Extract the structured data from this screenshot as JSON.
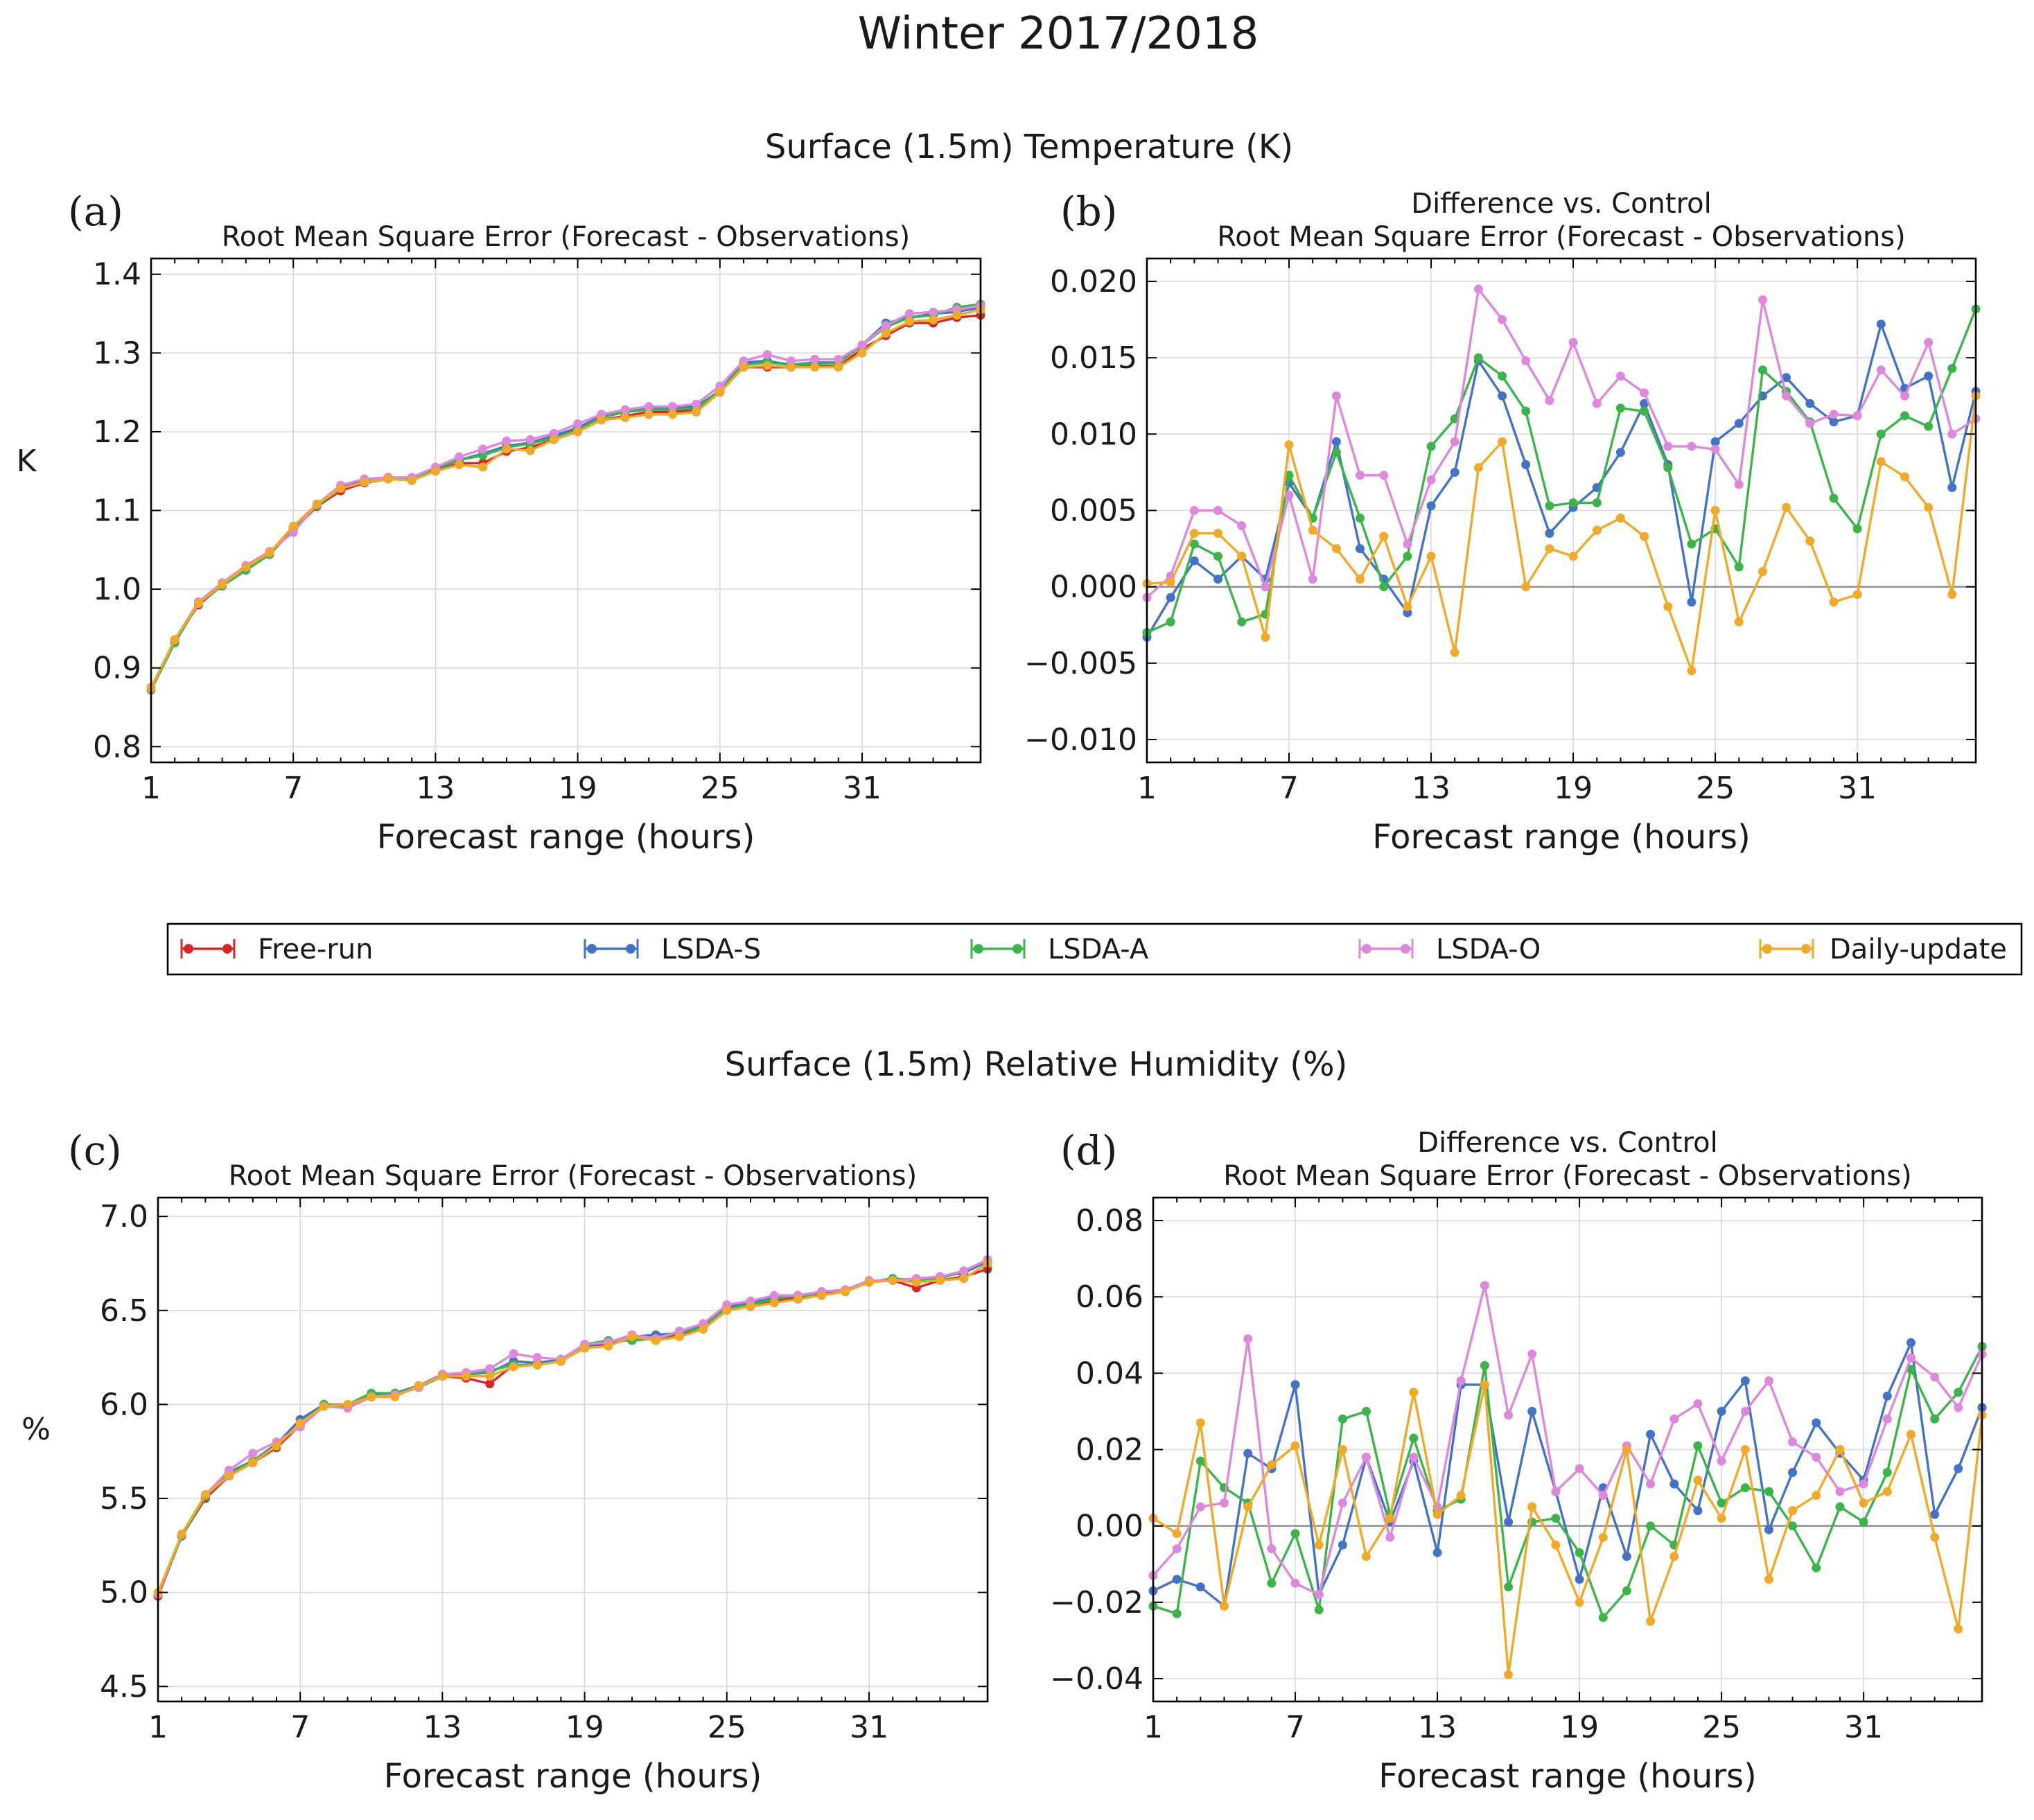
{
  "figure": {
    "title": "Winter 2017/2018",
    "row1_title": "Surface (1.5m) Temperature (K)",
    "row2_title": "Surface (1.5m) Relative Humidity (%)"
  },
  "legend": {
    "items": [
      {
        "name": "Free-run",
        "color": "#d62728"
      },
      {
        "name": "LSDA-S",
        "color": "#4472c4"
      },
      {
        "name": "LSDA-A",
        "color": "#3cb44b"
      },
      {
        "name": "LSDA-O",
        "color": "#dd88dd"
      },
      {
        "name": "Daily-update",
        "color": "#f0a92a"
      }
    ]
  },
  "chart_data": [
    {
      "id": "a",
      "letter": "(a)",
      "type": "line",
      "title": "Root Mean Square Error (Forecast - Observations)",
      "subtitle": "",
      "xlabel": "Forecast range (hours)",
      "ylabel": "K",
      "xlim": [
        1,
        36
      ],
      "ylim": [
        0.78,
        1.42
      ],
      "xticks": [
        1,
        7,
        13,
        19,
        25,
        31
      ],
      "yticks": [
        0.8,
        0.9,
        1.0,
        1.1,
        1.2,
        1.3,
        1.4
      ],
      "ytick_labels": [
        "0.8",
        "0.9",
        "1.0",
        "1.1",
        "1.2",
        "1.3",
        "1.4"
      ],
      "zero_line": false,
      "x": [
        1,
        2,
        3,
        4,
        5,
        6,
        7,
        8,
        9,
        10,
        11,
        12,
        13,
        14,
        15,
        16,
        17,
        18,
        19,
        20,
        21,
        22,
        23,
        24,
        25,
        26,
        27,
        28,
        29,
        30,
        31,
        32,
        33,
        34,
        35,
        36
      ],
      "series": [
        {
          "name": "Free-run",
          "values": [
            0.875,
            0.935,
            0.98,
            1.005,
            1.025,
            1.045,
            1.075,
            1.105,
            1.125,
            1.135,
            1.14,
            1.14,
            1.15,
            1.16,
            1.16,
            1.175,
            1.18,
            1.19,
            1.2,
            1.215,
            1.22,
            1.225,
            1.225,
            1.228,
            1.25,
            1.282,
            1.282,
            1.282,
            1.283,
            1.283,
            1.305,
            1.322,
            1.338,
            1.338,
            1.345,
            1.348
          ]
        },
        {
          "name": "LSDA-S",
          "values": [
            0.872,
            0.932,
            0.982,
            1.004,
            1.026,
            1.046,
            1.078,
            1.108,
            1.13,
            1.137,
            1.142,
            1.138,
            1.152,
            1.164,
            1.172,
            1.182,
            1.186,
            1.195,
            1.205,
            1.22,
            1.225,
            1.23,
            1.23,
            1.232,
            1.252,
            1.288,
            1.29,
            1.285,
            1.288,
            1.288,
            1.31,
            1.338,
            1.345,
            1.35,
            1.352,
            1.358
          ]
        },
        {
          "name": "LSDA-A",
          "values": [
            0.872,
            0.932,
            0.982,
            1.004,
            1.024,
            1.044,
            1.076,
            1.106,
            1.128,
            1.136,
            1.142,
            1.138,
            1.154,
            1.164,
            1.17,
            1.18,
            1.185,
            1.192,
            1.202,
            1.218,
            1.225,
            1.228,
            1.228,
            1.23,
            1.252,
            1.285,
            1.288,
            1.285,
            1.286,
            1.287,
            1.31,
            1.333,
            1.345,
            1.348,
            1.358,
            1.362
          ]
        },
        {
          "name": "LSDA-O",
          "values": [
            0.874,
            0.936,
            0.984,
            1.008,
            1.03,
            1.048,
            1.072,
            1.108,
            1.132,
            1.14,
            1.142,
            1.142,
            1.155,
            1.168,
            1.178,
            1.188,
            1.19,
            1.198,
            1.21,
            1.222,
            1.228,
            1.232,
            1.232,
            1.235,
            1.258,
            1.29,
            1.298,
            1.29,
            1.292,
            1.292,
            1.31,
            1.335,
            1.35,
            1.352,
            1.355,
            1.36
          ]
        },
        {
          "name": "Daily-update",
          "values": [
            0.875,
            0.936,
            0.982,
            1.006,
            1.028,
            1.046,
            1.08,
            1.108,
            1.128,
            1.136,
            1.14,
            1.138,
            1.15,
            1.158,
            1.155,
            1.178,
            1.176,
            1.19,
            1.2,
            1.215,
            1.218,
            1.222,
            1.222,
            1.225,
            1.25,
            1.282,
            1.284,
            1.282,
            1.282,
            1.282,
            1.3,
            1.325,
            1.34,
            1.342,
            1.348,
            1.355
          ]
        }
      ]
    },
    {
      "id": "b",
      "letter": "(b)",
      "type": "line",
      "title": "Difference vs. Control",
      "subtitle": "Root Mean Square Error (Forecast - Observations)",
      "xlabel": "Forecast range (hours)",
      "ylabel": "",
      "xlim": [
        1,
        36
      ],
      "ylim": [
        -0.0115,
        0.0215
      ],
      "xticks": [
        1,
        7,
        13,
        19,
        25,
        31
      ],
      "yticks": [
        -0.01,
        -0.005,
        0.0,
        0.005,
        0.01,
        0.015,
        0.02
      ],
      "ytick_labels": [
        "−0.010",
        "−0.005",
        "0.000",
        "0.005",
        "0.010",
        "0.015",
        "0.020"
      ],
      "zero_line": true,
      "x": [
        1,
        2,
        3,
        4,
        5,
        6,
        7,
        8,
        9,
        10,
        11,
        12,
        13,
        14,
        15,
        16,
        17,
        18,
        19,
        20,
        21,
        22,
        23,
        24,
        25,
        26,
        27,
        28,
        29,
        30,
        31,
        32,
        33,
        34,
        35,
        36
      ],
      "series": [
        {
          "name": "LSDA-S",
          "values": [
            -0.0033,
            -0.0007,
            0.0017,
            0.0005,
            0.002,
            0.0005,
            0.0068,
            0.0045,
            0.0095,
            0.0025,
            0.0005,
            -0.0017,
            0.0053,
            0.0075,
            0.0148,
            0.0125,
            0.008,
            0.0035,
            0.0052,
            0.0065,
            0.0088,
            0.012,
            0.008,
            -0.001,
            0.0095,
            0.0107,
            0.0125,
            0.0137,
            0.012,
            0.0108,
            0.0112,
            0.0172,
            0.013,
            0.0138,
            0.0065,
            0.0128
          ]
        },
        {
          "name": "LSDA-A",
          "values": [
            -0.003,
            -0.0023,
            0.0028,
            0.002,
            -0.0023,
            -0.0018,
            0.0073,
            0.0045,
            0.0088,
            0.0045,
            0.0,
            0.002,
            0.0092,
            0.011,
            0.015,
            0.0138,
            0.0115,
            0.0053,
            0.0055,
            0.0055,
            0.0117,
            0.0115,
            0.0078,
            0.0028,
            0.0038,
            0.0013,
            0.0142,
            0.0128,
            0.0108,
            0.0058,
            0.0038,
            0.01,
            0.0112,
            0.0105,
            0.0143,
            0.0182
          ]
        },
        {
          "name": "LSDA-O",
          "values": [
            -0.0007,
            0.0007,
            0.005,
            0.005,
            0.004,
            0.0,
            0.006,
            0.0005,
            0.0125,
            0.0073,
            0.0073,
            0.0028,
            0.007,
            0.0095,
            0.0195,
            0.0175,
            0.0148,
            0.0122,
            0.016,
            0.012,
            0.0138,
            0.0127,
            0.0092,
            0.0092,
            0.009,
            0.0067,
            0.0188,
            0.0125,
            0.0107,
            0.0113,
            0.0112,
            0.0142,
            0.0125,
            0.016,
            0.01,
            0.011
          ]
        },
        {
          "name": "Daily-update",
          "values": [
            0.0002,
            0.0003,
            0.0035,
            0.0035,
            0.002,
            -0.0033,
            0.0093,
            0.0037,
            0.0025,
            0.0005,
            0.0033,
            -0.0013,
            0.002,
            -0.0043,
            0.0078,
            0.0095,
            0.0,
            0.0025,
            0.002,
            0.0037,
            0.0045,
            0.0033,
            -0.0013,
            -0.0055,
            0.005,
            -0.0023,
            0.001,
            0.0052,
            0.003,
            -0.001,
            -0.0005,
            0.0082,
            0.0072,
            0.0052,
            -0.0005,
            0.0125
          ]
        }
      ]
    },
    {
      "id": "c",
      "letter": "(c)",
      "type": "line",
      "title": "Root Mean Square Error (Forecast - Observations)",
      "subtitle": "",
      "xlabel": "Forecast range (hours)",
      "ylabel": "%",
      "xlim": [
        1,
        36
      ],
      "ylim": [
        4.42,
        7.1
      ],
      "xticks": [
        1,
        7,
        13,
        19,
        25,
        31
      ],
      "yticks": [
        4.5,
        5.0,
        5.5,
        6.0,
        6.5,
        7.0
      ],
      "ytick_labels": [
        "4.5",
        "5.0",
        "5.5",
        "6.0",
        "6.5",
        "7.0"
      ],
      "zero_line": false,
      "x": [
        1,
        2,
        3,
        4,
        5,
        6,
        7,
        8,
        9,
        10,
        11,
        12,
        13,
        14,
        15,
        16,
        17,
        18,
        19,
        20,
        21,
        22,
        23,
        24,
        25,
        26,
        27,
        28,
        29,
        30,
        31,
        32,
        33,
        34,
        35,
        36
      ],
      "series": [
        {
          "name": "Free-run",
          "values": [
            4.98,
            5.3,
            5.5,
            5.62,
            5.69,
            5.77,
            5.89,
            6.0,
            5.99,
            6.04,
            6.05,
            6.09,
            6.15,
            6.14,
            6.11,
            6.21,
            6.21,
            6.23,
            6.3,
            6.32,
            6.35,
            6.35,
            6.37,
            6.41,
            6.51,
            6.52,
            6.55,
            6.57,
            6.59,
            6.6,
            6.65,
            6.66,
            6.62,
            6.66,
            6.68,
            6.72
          ]
        },
        {
          "name": "LSDA-S",
          "values": [
            4.99,
            5.3,
            5.51,
            5.64,
            5.7,
            5.79,
            5.92,
            6.0,
            5.99,
            6.05,
            6.06,
            6.1,
            6.16,
            6.16,
            6.17,
            6.23,
            6.22,
            6.24,
            6.31,
            6.33,
            6.36,
            6.37,
            6.38,
            6.42,
            6.52,
            6.54,
            6.57,
            6.58,
            6.6,
            6.61,
            6.65,
            6.67,
            6.66,
            6.68,
            6.7,
            6.76
          ]
        },
        {
          "name": "LSDA-A",
          "values": [
            4.99,
            5.3,
            5.51,
            5.63,
            5.7,
            5.78,
            5.9,
            6.0,
            6.0,
            6.06,
            6.06,
            6.09,
            6.15,
            6.16,
            6.18,
            6.21,
            6.21,
            6.23,
            6.32,
            6.34,
            6.34,
            6.35,
            6.38,
            6.41,
            6.51,
            6.53,
            6.56,
            6.58,
            6.58,
            6.6,
            6.65,
            6.67,
            6.66,
            6.67,
            6.71,
            6.77
          ]
        },
        {
          "name": "LSDA-O",
          "values": [
            4.99,
            5.31,
            5.52,
            5.65,
            5.74,
            5.8,
            5.88,
            5.99,
            5.98,
            6.04,
            6.05,
            6.09,
            6.16,
            6.17,
            6.19,
            6.27,
            6.25,
            6.24,
            6.32,
            6.33,
            6.37,
            6.35,
            6.39,
            6.43,
            6.53,
            6.55,
            6.58,
            6.58,
            6.6,
            6.61,
            6.66,
            6.66,
            6.67,
            6.68,
            6.71,
            6.77
          ]
        },
        {
          "name": "Daily-update",
          "values": [
            5.0,
            5.31,
            5.52,
            5.62,
            5.69,
            5.78,
            5.9,
            5.99,
            6.0,
            6.04,
            6.04,
            6.1,
            6.15,
            6.15,
            6.15,
            6.2,
            6.21,
            6.23,
            6.3,
            6.31,
            6.36,
            6.34,
            6.36,
            6.4,
            6.5,
            6.52,
            6.54,
            6.56,
            6.58,
            6.6,
            6.65,
            6.66,
            6.65,
            6.66,
            6.67,
            6.75
          ]
        }
      ]
    },
    {
      "id": "d",
      "letter": "(d)",
      "type": "line",
      "title": "Difference vs. Control",
      "subtitle": "Root Mean Square Error (Forecast - Observations)",
      "xlabel": "Forecast range (hours)",
      "ylabel": "",
      "xlim": [
        1,
        36
      ],
      "ylim": [
        -0.046,
        0.086
      ],
      "xticks": [
        1,
        7,
        13,
        19,
        25,
        31
      ],
      "yticks": [
        -0.04,
        -0.02,
        0.0,
        0.02,
        0.04,
        0.06,
        0.08
      ],
      "ytick_labels": [
        "−0.04",
        "−0.02",
        "0.00",
        "0.02",
        "0.04",
        "0.06",
        "0.08"
      ],
      "zero_line": true,
      "x": [
        1,
        2,
        3,
        4,
        5,
        6,
        7,
        8,
        9,
        10,
        11,
        12,
        13,
        14,
        15,
        16,
        17,
        18,
        19,
        20,
        21,
        22,
        23,
        24,
        25,
        26,
        27,
        28,
        29,
        30,
        31,
        32,
        33,
        34,
        35,
        36
      ],
      "series": [
        {
          "name": "LSDA-S",
          "values": [
            -0.017,
            -0.014,
            -0.016,
            -0.021,
            0.019,
            0.015,
            0.037,
            -0.018,
            -0.005,
            0.018,
            0.001,
            0.017,
            -0.007,
            0.037,
            0.037,
            0.001,
            0.03,
            0.009,
            -0.014,
            0.01,
            -0.008,
            0.024,
            0.011,
            0.004,
            0.03,
            0.038,
            -0.001,
            0.014,
            0.027,
            0.019,
            0.012,
            0.034,
            0.048,
            0.003,
            0.015,
            0.031
          ]
        },
        {
          "name": "LSDA-A",
          "values": [
            -0.021,
            -0.023,
            0.017,
            0.01,
            0.006,
            -0.015,
            -0.002,
            -0.022,
            0.028,
            0.03,
            0.003,
            0.023,
            0.004,
            0.007,
            0.042,
            -0.016,
            0.001,
            0.002,
            -0.007,
            -0.024,
            -0.017,
            0.0,
            -0.005,
            0.021,
            0.006,
            0.01,
            0.009,
            0.0,
            -0.011,
            0.005,
            0.001,
            0.014,
            0.041,
            0.028,
            0.035,
            0.047
          ]
        },
        {
          "name": "LSDA-O",
          "values": [
            -0.013,
            -0.006,
            0.005,
            0.006,
            0.049,
            -0.006,
            -0.015,
            -0.018,
            0.006,
            0.018,
            -0.003,
            0.018,
            0.005,
            0.038,
            0.063,
            0.029,
            0.045,
            0.009,
            0.015,
            0.008,
            0.021,
            0.011,
            0.028,
            0.032,
            0.017,
            0.03,
            0.038,
            0.022,
            0.018,
            0.009,
            0.011,
            0.028,
            0.044,
            0.039,
            0.031,
            0.045
          ]
        },
        {
          "name": "Daily-update",
          "values": [
            0.002,
            -0.002,
            0.027,
            -0.021,
            0.005,
            0.016,
            0.021,
            -0.005,
            0.02,
            -0.008,
            0.002,
            0.035,
            0.003,
            0.008,
            0.037,
            -0.039,
            0.005,
            -0.005,
            -0.02,
            -0.003,
            0.02,
            -0.025,
            -0.008,
            0.012,
            0.002,
            0.02,
            -0.014,
            0.004,
            0.008,
            0.02,
            0.006,
            0.009,
            0.024,
            -0.003,
            -0.027,
            0.029
          ]
        }
      ]
    }
  ]
}
